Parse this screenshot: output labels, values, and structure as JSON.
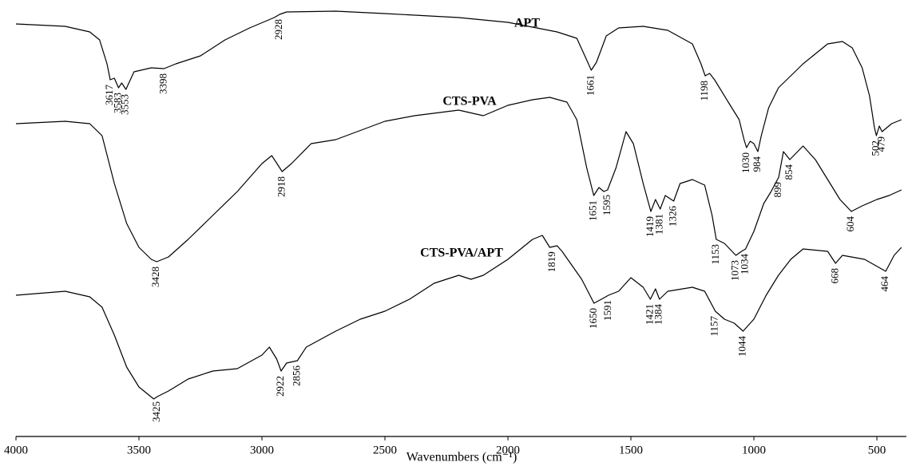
{
  "chart_data": {
    "type": "line",
    "xlabel": "Wavenumbers (cm⁻¹)",
    "xlim": [
      4000,
      380
    ],
    "xticks": [
      4000,
      3500,
      3000,
      2500,
      2000,
      1500,
      1000,
      500
    ],
    "ylim": [
      0,
      540
    ],
    "series": [
      {
        "name": "APT",
        "color": "#000000",
        "x": [
          4000,
          3800,
          3700,
          3660,
          3630,
          3617,
          3600,
          3583,
          3570,
          3553,
          3520,
          3450,
          3398,
          3350,
          3250,
          3150,
          3050,
          2950,
          2928,
          2900,
          2700,
          2500,
          2200,
          2000,
          1800,
          1720,
          1680,
          1661,
          1640,
          1600,
          1550,
          1450,
          1350,
          1250,
          1215,
          1198,
          1180,
          1160,
          1100,
          1060,
          1040,
          1030,
          1015,
          1000,
          984,
          970,
          940,
          900,
          800,
          700,
          640,
          600,
          560,
          530,
          510,
          502,
          490,
          479,
          440,
          400
        ],
        "values": [
          517,
          514,
          507,
          497,
          467,
          447,
          449,
          437,
          443,
          435,
          457,
          462,
          461,
          467,
          477,
          497,
          512,
          525,
          529,
          532,
          533,
          530,
          525,
          519,
          507,
          499,
          472,
          459,
          469,
          502,
          512,
          514,
          509,
          492,
          467,
          452,
          455,
          447,
          417,
          397,
          372,
          362,
          370,
          367,
          357,
          377,
          412,
          437,
          467,
          492,
          495,
          487,
          462,
          427,
          387,
          377,
          389,
          382,
          392,
          397
        ],
        "peaks": [
          3617,
          3583,
          3553,
          3398,
          2928,
          1661,
          1198,
          1030,
          984,
          502,
          479
        ]
      },
      {
        "name": "CTS-PVA",
        "color": "#000000",
        "x": [
          4000,
          3800,
          3700,
          3650,
          3600,
          3550,
          3500,
          3450,
          3428,
          3380,
          3300,
          3200,
          3100,
          3000,
          2960,
          2918,
          2880,
          2800,
          2700,
          2500,
          2380,
          2200,
          2100,
          2000,
          1900,
          1830,
          1760,
          1720,
          1680,
          1651,
          1630,
          1610,
          1595,
          1560,
          1520,
          1490,
          1450,
          1419,
          1400,
          1381,
          1360,
          1326,
          1300,
          1250,
          1200,
          1170,
          1153,
          1120,
          1073,
          1050,
          1034,
          1000,
          960,
          930,
          899,
          880,
          854,
          800,
          750,
          700,
          650,
          604,
          560,
          500,
          450,
          400
        ],
        "values": [
          392,
          395,
          392,
          377,
          317,
          267,
          237,
          222,
          219,
          225,
          247,
          277,
          307,
          342,
          352,
          332,
          342,
          367,
          372,
          395,
          402,
          409,
          402,
          415,
          422,
          425,
          419,
          397,
          337,
          302,
          312,
          307,
          309,
          337,
          382,
          367,
          317,
          282,
          297,
          285,
          302,
          295,
          317,
          322,
          315,
          277,
          247,
          242,
          227,
          232,
          235,
          257,
          292,
          307,
          325,
          357,
          347,
          364,
          347,
          322,
          297,
          282,
          289,
          297,
          302,
          309
        ],
        "peaks": [
          3428,
          2918,
          1651,
          1595,
          1419,
          1381,
          1326,
          1153,
          1073,
          1034,
          899,
          854,
          604
        ]
      },
      {
        "name": "CTS-PVA/APT",
        "color": "#000000",
        "x": [
          4000,
          3800,
          3700,
          3650,
          3600,
          3550,
          3500,
          3440,
          3425,
          3380,
          3300,
          3200,
          3100,
          3000,
          2970,
          2940,
          2922,
          2900,
          2856,
          2820,
          2700,
          2600,
          2500,
          2400,
          2300,
          2200,
          2150,
          2100,
          2000,
          1900,
          1860,
          1830,
          1800,
          1780,
          1700,
          1650,
          1620,
          1591,
          1550,
          1500,
          1450,
          1421,
          1400,
          1384,
          1350,
          1250,
          1200,
          1157,
          1120,
          1080,
          1044,
          1000,
          950,
          900,
          850,
          800,
          700,
          668,
          640,
          550,
          464,
          430,
          400
        ],
        "values": [
          177,
          182,
          175,
          162,
          127,
          87,
          62,
          47,
          50,
          57,
          72,
          82,
          85,
          102,
          112,
          97,
          82,
          92,
          95,
          112,
          132,
          147,
          157,
          172,
          192,
          202,
          197,
          202,
          222,
          247,
          252,
          237,
          239,
          232,
          197,
          167,
          172,
          177,
          182,
          199,
          187,
          172,
          185,
          172,
          182,
          187,
          182,
          157,
          147,
          142,
          132,
          147,
          177,
          202,
          222,
          235,
          232,
          217,
          227,
          222,
          207,
          227,
          237
        ],
        "peaks": [
          3425,
          2922,
          2856,
          1819,
          1650,
          1591,
          1421,
          1384,
          1157,
          1044,
          668,
          464
        ]
      }
    ]
  }
}
